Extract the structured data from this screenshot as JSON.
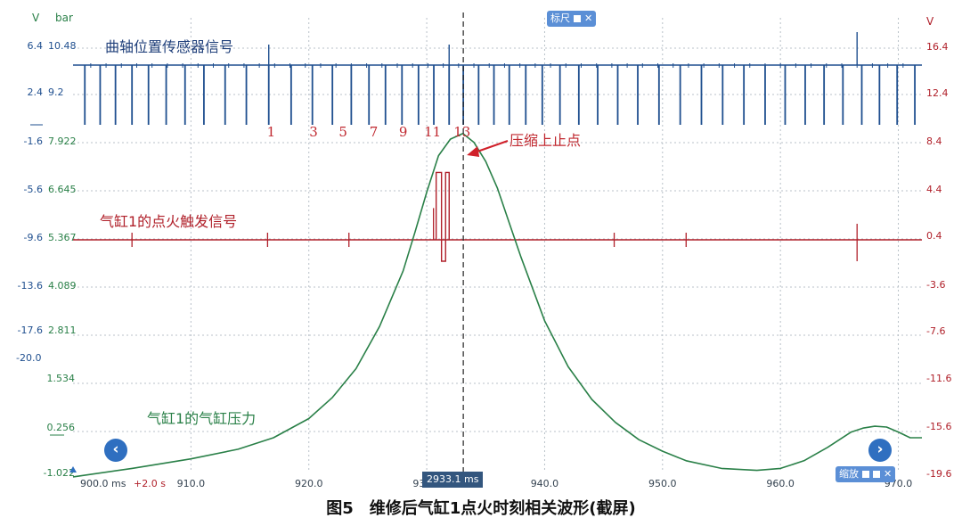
{
  "header": {
    "left_unit_v": "V",
    "left_unit_bar": "bar",
    "right_unit_v": "V"
  },
  "left_axis_v": [
    "6.4",
    "2.4",
    "-1.6",
    "-5.6",
    "-9.6",
    "-13.6",
    "-17.6",
    "-20.0"
  ],
  "left_axis_bar": [
    "10.48",
    "9.2",
    "7.922",
    "6.645",
    "5.367",
    "4.089",
    "2.811",
    "1.534",
    "0.256",
    "-1.022"
  ],
  "right_axis_v": [
    "16.4",
    "12.4",
    "8.4",
    "4.4",
    "0.4",
    "-3.6",
    "-7.6",
    "-11.6",
    "-15.6",
    "-19.6"
  ],
  "x_axis": {
    "start_label": "900.0 ms",
    "offset_label": "+2.0 s",
    "tick_labels": [
      "910.0",
      "920.0",
      "930.0",
      "940.0",
      "950.0",
      "960.0",
      "970.0"
    ]
  },
  "tooth_numbers": [
    "1",
    "3",
    "5",
    "7",
    "9",
    "11",
    "13"
  ],
  "annotations": {
    "crank_signal": "曲轴位置传感器信号",
    "ignition_signal": "气缸1的点火触发信号",
    "cylinder_pressure": "气缸1的气缸压力",
    "tdc": "压缩上止点"
  },
  "controls": {
    "ruler_chip": "标尺",
    "zoom_chip": "缩放",
    "close_glyph": "✕",
    "nav_left": "‹",
    "nav_right": "›",
    "cursor_readout": "2933.1 ms"
  },
  "caption": "图5　维修后气缸1点火时刻相关波形(截屏)",
  "colors": {
    "crank": "#1f4f8f",
    "ignition": "#b0202a",
    "pressure": "#2a8048",
    "grid": "#b8c0c8",
    "accent": "#5b8fd6"
  },
  "chart_data": {
    "type": "line",
    "x_unit": "ms",
    "xlim": [
      900.0,
      972.0
    ],
    "cursor_x": 933.1,
    "grid": true,
    "series": [
      {
        "name": "曲轴位置传感器信号",
        "unit": "V",
        "baseline": 5.6,
        "pulse_low": -0.4,
        "pulse_x": [
          901.0,
          902.3,
          903.6,
          905.0,
          906.4,
          907.9,
          909.5,
          911.1,
          912.9,
          914.7,
          916.6,
          918.5,
          920.3,
          922.0,
          923.6,
          925.1,
          926.5,
          927.9,
          929.3,
          930.6,
          931.9,
          933.1,
          934.4,
          935.7,
          937.0,
          938.4,
          939.8,
          941.3,
          942.9,
          944.5,
          946.2,
          947.9,
          949.7,
          951.5,
          953.3,
          955.1,
          956.9,
          958.7,
          960.4,
          962.1,
          963.7,
          965.3,
          966.9,
          968.4,
          969.9,
          971.4
        ],
        "spike_x": [
          916.6,
          931.9,
          966.5
        ]
      },
      {
        "name": "气缸1的点火触发信号",
        "unit": "V",
        "baseline": 0.4,
        "pulse_start": 930.8,
        "pulse_end": 931.6,
        "pulse_high": 6.0,
        "spike_x": [
          905.0,
          916.5,
          923.4,
          945.9,
          952.0,
          966.5
        ]
      },
      {
        "name": "气缸1的气缸压力",
        "unit": "bar",
        "x": [
          900,
          905,
          910,
          914,
          917,
          920,
          922,
          924,
          926,
          928,
          929,
          930,
          931,
          932,
          933,
          933.1,
          934,
          935,
          936,
          937,
          938,
          940,
          942,
          944,
          946,
          948,
          950,
          952,
          955,
          958,
          960,
          962,
          964,
          966,
          967,
          968,
          969,
          970,
          971,
          972
        ],
        "y": [
          -1.02,
          -0.8,
          -0.55,
          -0.3,
          0.0,
          0.5,
          1.05,
          1.8,
          2.9,
          4.35,
          5.35,
          6.4,
          7.35,
          7.78,
          7.92,
          7.92,
          7.7,
          7.2,
          6.5,
          5.6,
          4.7,
          3.05,
          1.85,
          1.0,
          0.4,
          -0.05,
          -0.35,
          -0.6,
          -0.8,
          -0.85,
          -0.8,
          -0.6,
          -0.25,
          0.15,
          0.25,
          0.3,
          0.28,
          0.15,
          0.0,
          0.0
        ]
      }
    ]
  }
}
